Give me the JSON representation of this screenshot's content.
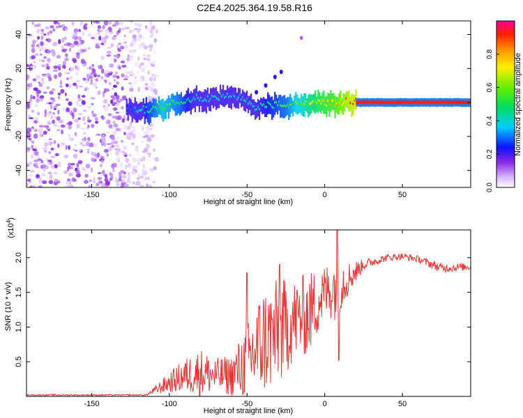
{
  "title": "C2E4.2025.364.19.58.R16",
  "colors": {
    "snr_line": "#ee3333",
    "axis": "#000000",
    "background": "#ffffff"
  },
  "chart_data": [
    {
      "type": "heatmap",
      "name": "spectrogram",
      "xlabel": "Height of straight line (km)",
      "ylabel": "Frequency (Hz)",
      "xlim": [
        -192,
        94
      ],
      "ylim": [
        -50,
        48
      ],
      "xticks": [
        -150,
        -100,
        -50,
        0,
        50
      ],
      "xtick_labels": [
        "-150",
        "-100",
        "-50",
        "0",
        "50"
      ],
      "yticks": [
        -40,
        -20,
        0,
        20,
        40
      ],
      "ytick_labels": [
        "-40",
        "-20",
        "0",
        "20",
        "40"
      ],
      "colorbar": {
        "label": "Normalized spectral amplitude",
        "range": [
          0,
          1
        ],
        "ticks": [
          0.0,
          0.2,
          0.4,
          0.6,
          0.8
        ],
        "tick_labels": [
          "0.0",
          "0.2",
          "0.4",
          "0.6",
          "0.8"
        ]
      },
      "noise_region": {
        "x_range": [
          -192,
          -118
        ],
        "amplitude": 0.15
      },
      "ridge": [
        {
          "x": -128,
          "f": -4,
          "amp": 0.25
        },
        {
          "x": -115,
          "f": -5,
          "amp": 0.5
        },
        {
          "x": -105,
          "f": -3,
          "amp": 0.6
        },
        {
          "x": -95,
          "f": 0,
          "amp": 0.55
        },
        {
          "x": -85,
          "f": 2,
          "amp": 0.45
        },
        {
          "x": -75,
          "f": 2,
          "amp": 0.45
        },
        {
          "x": -65,
          "f": 3,
          "amp": 0.4
        },
        {
          "x": -55,
          "f": 2,
          "amp": 0.4
        },
        {
          "x": -45,
          "f": -3,
          "amp": 0.45
        },
        {
          "x": -35,
          "f": -2,
          "amp": 0.5
        },
        {
          "x": -25,
          "f": -2,
          "amp": 0.55
        },
        {
          "x": -15,
          "f": -2,
          "amp": 0.65
        },
        {
          "x": -5,
          "f": 0,
          "amp": 0.75
        },
        {
          "x": 5,
          "f": -1,
          "amp": 0.8
        },
        {
          "x": 15,
          "f": 0,
          "amp": 0.9
        },
        {
          "x": 30,
          "f": 0,
          "amp": 1.0
        },
        {
          "x": 94,
          "f": 0,
          "amp": 1.0
        }
      ],
      "branch": [
        {
          "x": -44,
          "f": 6
        },
        {
          "x": -38,
          "f": 10
        },
        {
          "x": -32,
          "f": 15
        },
        {
          "x": -28,
          "f": 18
        }
      ],
      "outlier": {
        "x": -15,
        "f": 38
      }
    },
    {
      "type": "line",
      "name": "snr",
      "xlabel": "Height of straight line (km)",
      "ylabel": "SNR (10 * v/v)",
      "multiplier_label": "(x10",
      "multiplier_exp": "4",
      "multiplier_close": ")",
      "xlim": [
        -192,
        94
      ],
      "ylim": [
        0,
        2.4
      ],
      "xticks": [
        -150,
        -100,
        -50,
        0,
        50
      ],
      "xtick_labels": [
        "-150",
        "-100",
        "-50",
        "0",
        "50"
      ],
      "yticks": [
        0.5,
        1.0,
        1.5,
        2.0
      ],
      "ytick_labels": [
        "0.5",
        "1.0",
        "1.5",
        "2.0"
      ],
      "envelope": [
        {
          "x": -192,
          "base": 0.02,
          "amp": 0.01
        },
        {
          "x": -115,
          "base": 0.02,
          "amp": 0.01
        },
        {
          "x": -110,
          "base": 0.08,
          "amp": 0.05
        },
        {
          "x": -100,
          "base": 0.2,
          "amp": 0.15
        },
        {
          "x": -90,
          "base": 0.3,
          "amp": 0.25
        },
        {
          "x": -80,
          "base": 0.35,
          "amp": 0.35
        },
        {
          "x": -70,
          "base": 0.3,
          "amp": 0.25
        },
        {
          "x": -60,
          "base": 0.3,
          "amp": 0.3
        },
        {
          "x": -50,
          "base": 0.5,
          "amp": 0.55
        },
        {
          "x": -40,
          "base": 0.8,
          "amp": 0.8
        },
        {
          "x": -30,
          "base": 0.9,
          "amp": 0.8
        },
        {
          "x": -20,
          "base": 1.1,
          "amp": 0.6
        },
        {
          "x": -10,
          "base": 1.2,
          "amp": 0.6
        },
        {
          "x": 0,
          "base": 1.5,
          "amp": 0.4
        },
        {
          "x": 8,
          "base": 1.6,
          "amp": 0.5
        },
        {
          "x": 15,
          "base": 1.7,
          "amp": 0.25
        },
        {
          "x": 25,
          "base": 1.9,
          "amp": 0.08
        },
        {
          "x": 40,
          "base": 2.0,
          "amp": 0.05
        },
        {
          "x": 50,
          "base": 2.02,
          "amp": 0.05
        },
        {
          "x": 60,
          "base": 1.98,
          "amp": 0.05
        },
        {
          "x": 75,
          "base": 1.85,
          "amp": 0.07
        },
        {
          "x": 94,
          "base": 1.87,
          "amp": 0.05
        }
      ],
      "spikes": [
        {
          "x": 8,
          "y": 2.4
        },
        {
          "x": 9,
          "y": 0.52
        },
        {
          "x": -50,
          "y": 1.78
        },
        {
          "x": -29,
          "y": 1.9
        }
      ]
    }
  ]
}
